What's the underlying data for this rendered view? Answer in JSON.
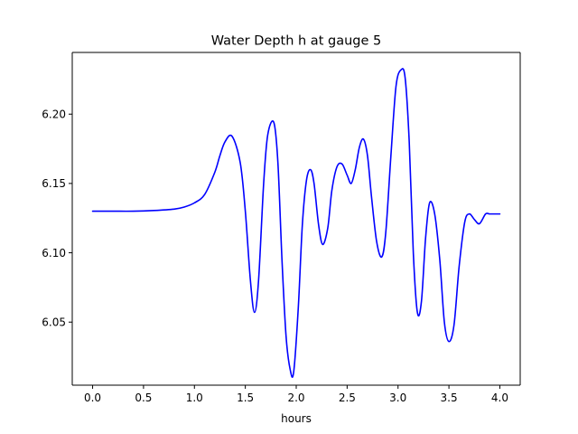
{
  "chart_data": {
    "type": "line",
    "title": "Water Depth h at gauge 5",
    "xlabel": "hours",
    "ylabel": "",
    "xlim": [
      -0.2,
      4.2
    ],
    "ylim": [
      6.0045,
      6.2445
    ],
    "grid": false,
    "legend": "none",
    "x_ticks": [
      {
        "value": 0.0,
        "label": "0.0"
      },
      {
        "value": 0.5,
        "label": "0.5"
      },
      {
        "value": 1.0,
        "label": "1.0"
      },
      {
        "value": 1.5,
        "label": "1.5"
      },
      {
        "value": 2.0,
        "label": "2.0"
      },
      {
        "value": 2.5,
        "label": "2.5"
      },
      {
        "value": 3.0,
        "label": "3.0"
      },
      {
        "value": 3.5,
        "label": "3.5"
      },
      {
        "value": 4.0,
        "label": "4.0"
      }
    ],
    "y_ticks": [
      {
        "value": 6.05,
        "label": "6.05"
      },
      {
        "value": 6.1,
        "label": "6.10"
      },
      {
        "value": 6.15,
        "label": "6.15"
      },
      {
        "value": 6.2,
        "label": "6.20"
      }
    ],
    "series": [
      {
        "color": "#0000ff",
        "x": [
          0.0,
          0.2,
          0.4,
          0.6,
          0.8,
          0.9,
          1.0,
          1.1,
          1.2,
          1.25,
          1.3,
          1.37,
          1.45,
          1.5,
          1.55,
          1.59,
          1.63,
          1.68,
          1.72,
          1.78,
          1.82,
          1.86,
          1.9,
          1.94,
          1.975,
          2.02,
          2.06,
          2.1,
          2.14,
          2.175,
          2.22,
          2.26,
          2.31,
          2.35,
          2.4,
          2.45,
          2.5,
          2.54,
          2.58,
          2.62,
          2.66,
          2.7,
          2.74,
          2.79,
          2.84,
          2.88,
          2.93,
          2.98,
          3.03,
          3.07,
          3.11,
          3.15,
          3.19,
          3.23,
          3.27,
          3.31,
          3.36,
          3.41,
          3.455,
          3.5,
          3.55,
          3.6,
          3.655,
          3.7,
          3.75,
          3.8,
          3.86,
          3.9,
          3.95,
          4.0
        ],
        "values": [
          6.13,
          6.13,
          6.13,
          6.1305,
          6.1315,
          6.133,
          6.136,
          6.142,
          6.158,
          6.17,
          6.18,
          6.184,
          6.165,
          6.13,
          6.08,
          6.057,
          6.08,
          6.15,
          6.185,
          6.194,
          6.165,
          6.095,
          6.04,
          6.016,
          6.014,
          6.06,
          6.12,
          6.152,
          6.16,
          6.15,
          6.12,
          6.106,
          6.118,
          6.145,
          6.162,
          6.164,
          6.156,
          6.15,
          6.16,
          6.176,
          6.182,
          6.17,
          6.14,
          6.108,
          6.097,
          6.115,
          6.17,
          6.22,
          6.232,
          6.226,
          6.18,
          6.1,
          6.057,
          6.065,
          6.11,
          6.136,
          6.128,
          6.095,
          6.05,
          6.036,
          6.048,
          6.09,
          6.122,
          6.128,
          6.124,
          6.121,
          6.128,
          6.128,
          6.128,
          6.128
        ]
      }
    ]
  }
}
